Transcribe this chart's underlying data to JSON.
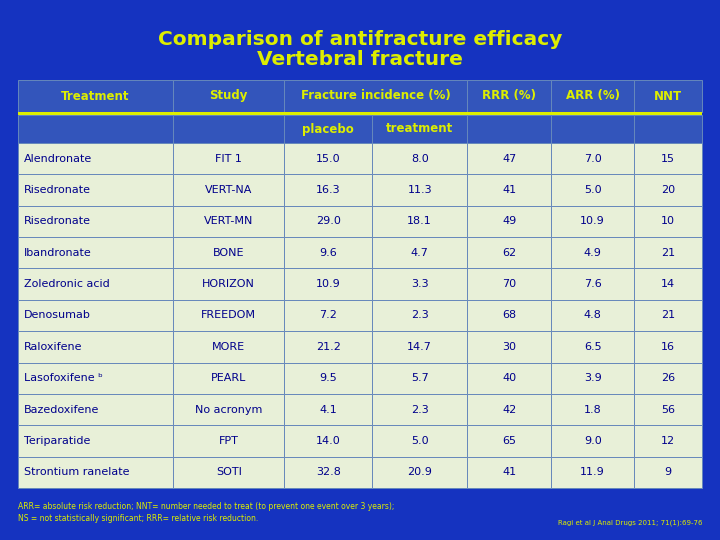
{
  "title_line1": "Comparison of antifracture efficacy",
  "title_line2": "Vertebral fracture",
  "title_color": "#DDEE00",
  "bg_color": "#1533C0",
  "header_bg": "#3355BB",
  "subheader_bg": "#3355BB",
  "row_bg": "#E8F0D8",
  "header_text_color": "#DDEE00",
  "subheader_text_color": "#DDEE00",
  "cell_text_color": "#00008B",
  "footer_text_color": "#DDEE00",
  "border_color": "#6688BB",
  "yellow_line_color": "#DDEE00",
  "rows": [
    [
      "Alendronate",
      "FIT 1",
      "15.0",
      "8.0",
      "47",
      "7.0",
      "15"
    ],
    [
      "Risedronate",
      "VERT-NA",
      "16.3",
      "11.3",
      "41",
      "5.0",
      "20"
    ],
    [
      "Risedronate",
      "VERT-MN",
      "29.0",
      "18.1",
      "49",
      "10.9",
      "10"
    ],
    [
      "Ibandronate",
      "BONE",
      "9.6",
      "4.7",
      "62",
      "4.9",
      "21"
    ],
    [
      "Zoledronic acid",
      "HORIZON",
      "10.9",
      "3.3",
      "70",
      "7.6",
      "14"
    ],
    [
      "Denosumab",
      "FREEDOM",
      "7.2",
      "2.3",
      "68",
      "4.8",
      "21"
    ],
    [
      "Raloxifene",
      "MORE",
      "21.2",
      "14.7",
      "30",
      "6.5",
      "16"
    ],
    [
      "Lasofoxifene ᵇ",
      "PEARL",
      "9.5",
      "5.7",
      "40",
      "3.9",
      "26"
    ],
    [
      "Bazedoxifene",
      "No acronym",
      "4.1",
      "2.3",
      "42",
      "1.8",
      "56"
    ],
    [
      "Teriparatide",
      "FPT",
      "14.0",
      "5.0",
      "65",
      "9.0",
      "12"
    ],
    [
      "Strontium ranelate",
      "SOTI",
      "32.8",
      "20.9",
      "41",
      "11.9",
      "9"
    ]
  ],
  "footer1": "ARR= absolute risk reduction; NNT= number needed to treat (to prevent one event over 3 years);",
  "footer2": "NS = not statistically significant; RRR= relative risk reduction.",
  "footer_right": "Ragi et al J Anal Drugs 2011; 71(1):69-76"
}
